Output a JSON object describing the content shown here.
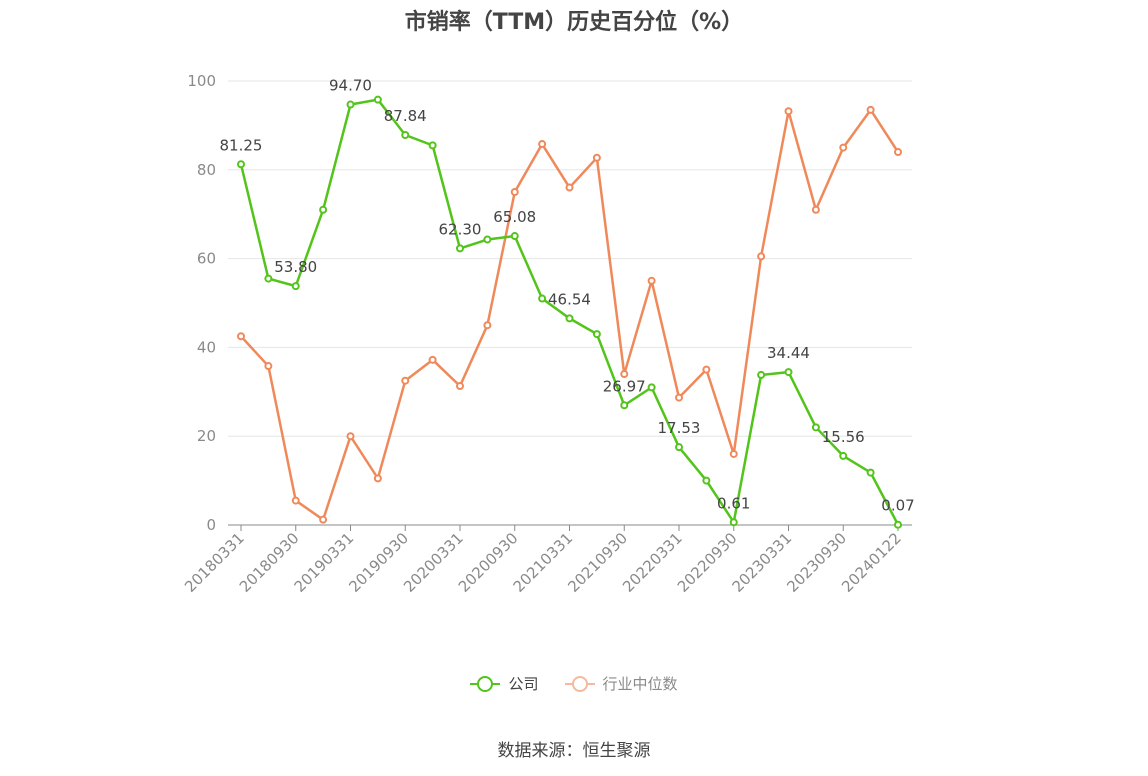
{
  "title": "市销率（TTM）历史百分位（%）",
  "source": "数据来源：恒生聚源",
  "chart_data": {
    "type": "line",
    "title": "市销率（TTM）历史百分位（%）",
    "ylim": [
      0,
      100
    ],
    "yticks": [
      0,
      20,
      40,
      60,
      80,
      100
    ],
    "grid": true,
    "legend_position": "bottom",
    "x_tick_labels": [
      "20180331",
      "20180930",
      "20190331",
      "20190930",
      "20200331",
      "20200930",
      "20210331",
      "20210930",
      "20220331",
      "20220930",
      "20230331",
      "20230930",
      "20240122"
    ],
    "x": [
      "20180331",
      "20180630",
      "20180930",
      "20181231",
      "20190331",
      "20190630",
      "20190930",
      "20191231",
      "20200331",
      "20200630",
      "20200930",
      "20201231",
      "20210331",
      "20210630",
      "20210930",
      "20211231",
      "20220331",
      "20220630",
      "20220930",
      "20221231",
      "20230331",
      "20230630",
      "20230930",
      "20231231",
      "20240122"
    ],
    "series": [
      {
        "name": "公司",
        "color": "#52c41a",
        "values": [
          81.25,
          55.5,
          53.8,
          71.0,
          94.7,
          95.8,
          87.84,
          85.5,
          62.3,
          64.3,
          65.08,
          51.0,
          46.54,
          43.0,
          26.97,
          31.0,
          17.53,
          10.0,
          0.61,
          33.8,
          34.44,
          22.0,
          15.56,
          11.8,
          0.07
        ],
        "labels": [
          "81.25",
          "",
          "53.80",
          "",
          "94.70",
          "",
          "87.84",
          "",
          "62.30",
          "",
          "65.08",
          "",
          "46.54",
          "",
          "26.97",
          "",
          "17.53",
          "",
          "0.61",
          "",
          "34.44",
          "",
          "15.56",
          "",
          "0.07"
        ]
      },
      {
        "name": "行业中位数",
        "color": "#f0895a",
        "values": [
          42.5,
          35.8,
          5.5,
          1.2,
          20.0,
          10.5,
          32.5,
          37.2,
          31.3,
          45.0,
          75.0,
          85.8,
          76.0,
          82.7,
          34.0,
          55.0,
          28.7,
          35.0,
          16.0,
          60.5,
          93.2,
          71.0,
          85.0,
          93.5,
          84.0
        ]
      }
    ]
  },
  "legend": [
    {
      "label": "公司",
      "color": "#52c41a",
      "active": true
    },
    {
      "label": "行业中位数",
      "color": "#f6b9a0",
      "active": false
    }
  ]
}
